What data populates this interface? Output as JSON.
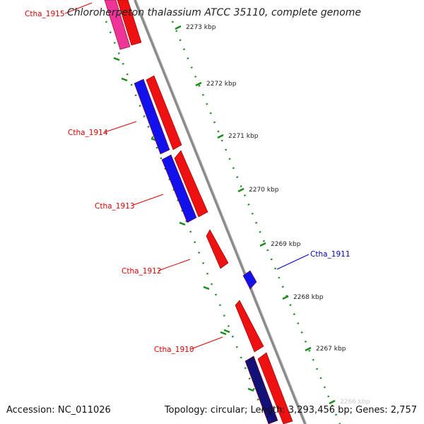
{
  "title": "Chloroherpeton thalassium ATCC 35110, complete genome",
  "accession": {
    "label": "Accession:",
    "value": "NC_011026"
  },
  "summary": {
    "topology_label": "Topology:",
    "topology": "circular;",
    "length_label": "Length:",
    "length": "3,293,456 bp;",
    "genes_label": "Genes:",
    "genes": "2,757"
  },
  "ruler_ticks": [
    "2273 kbp",
    "2272 kbp",
    "2271 kbp",
    "2270 kbp",
    "2269 kbp",
    "2268 kbp",
    "2267 kbp",
    "2266 kbp"
  ],
  "gene_labels": [
    {
      "id": "Ctha_1915",
      "text": "Ctha_1915",
      "color": "#e00000"
    },
    {
      "id": "Ctha_1914",
      "text": "Ctha_1914",
      "color": "#e00000"
    },
    {
      "id": "Ctha_1913",
      "text": "Ctha_1913",
      "color": "#e00000"
    },
    {
      "id": "Ctha_1912",
      "text": "Ctha_1912",
      "color": "#e00000"
    },
    {
      "id": "Ctha_1911",
      "text": "Ctha_1911",
      "color": "#0000cc"
    },
    {
      "id": "Ctha_1910",
      "text": "Ctha_1910",
      "color": "#e00000"
    }
  ],
  "colors": {
    "forward_gene": "#ee1111",
    "reverse_gene": "#1111ee",
    "pink_gene": "#ee3399",
    "navy_gene": "#111177",
    "backbone": "#888888",
    "ruler_dots": "#1a8a1a"
  }
}
